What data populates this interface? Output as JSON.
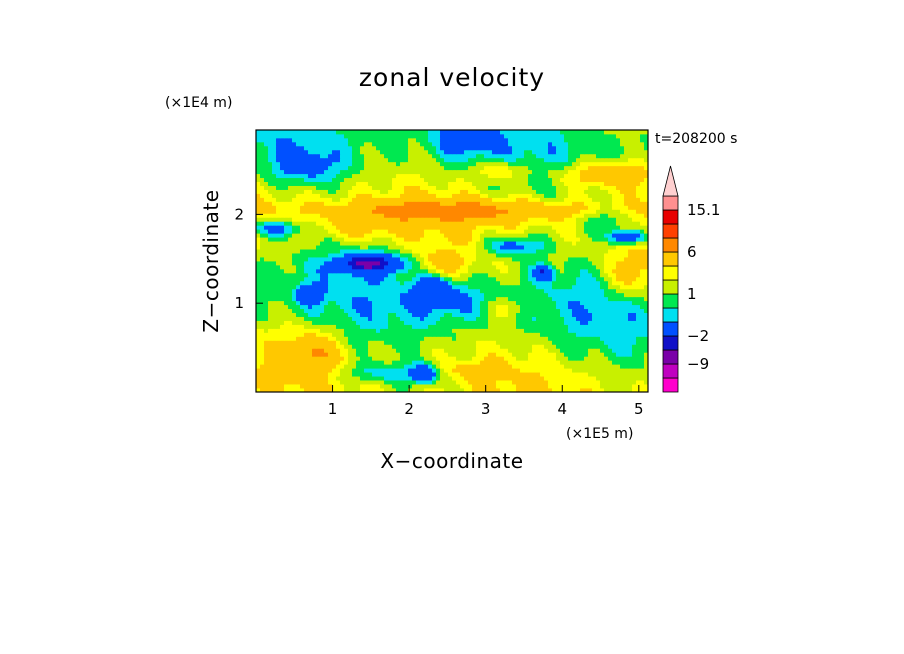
{
  "chart_data": {
    "type": "heatmap",
    "title": "zonal velocity",
    "xlabel": "X−coordinate",
    "ylabel": "Z−coordinate",
    "x_unit": "(×1E5 m)",
    "y_unit": "(×1E4 m)",
    "time_label": "t=208200 s",
    "xlim": [
      0,
      5.12
    ],
    "ylim": [
      0,
      2.95
    ],
    "x_ticks": [
      {
        "value": 1,
        "label": "1"
      },
      {
        "value": 2,
        "label": "2"
      },
      {
        "value": 3,
        "label": "3"
      },
      {
        "value": 4,
        "label": "4"
      },
      {
        "value": 5,
        "label": "5"
      }
    ],
    "y_ticks": [
      {
        "value": 1,
        "label": "1"
      },
      {
        "value": 2,
        "label": "2"
      }
    ],
    "colorbar": {
      "levels": [
        -15.1,
        -12,
        -9,
        -6,
        -2,
        -1,
        0,
        1,
        2,
        4,
        6,
        9,
        12,
        15.1
      ],
      "colors": [
        "#ff00cc",
        "#c000c0",
        "#7a00a8",
        "#1010c8",
        "#0050ff",
        "#00e0f0",
        "#00e850",
        "#c8f000",
        "#ffff00",
        "#ffc800",
        "#ff8800",
        "#ff4000",
        "#e80000",
        "#ff9090",
        "#ffd0d0"
      ],
      "labels": [
        {
          "value": 15.1,
          "text": "15.1"
        },
        {
          "value": 6,
          "text": "6"
        },
        {
          "value": 1,
          "text": "1"
        },
        {
          "value": -2,
          "text": "−2"
        },
        {
          "value": -9,
          "text": "−9"
        }
      ]
    },
    "grid": false,
    "legend": "colorbar right"
  }
}
